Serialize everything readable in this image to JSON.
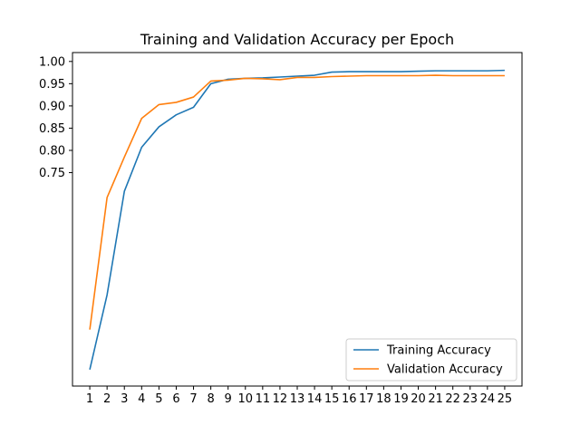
{
  "chart_data": {
    "type": "line",
    "title": "Training and Validation Accuracy per Epoch",
    "xlabel": "",
    "ylabel": "",
    "x": [
      1,
      2,
      3,
      4,
      5,
      6,
      7,
      8,
      9,
      10,
      11,
      12,
      13,
      14,
      15,
      16,
      17,
      18,
      19,
      20,
      21,
      22,
      23,
      24,
      25
    ],
    "xticks": [
      "1",
      "2",
      "3",
      "4",
      "5",
      "6",
      "7",
      "8",
      "9",
      "10",
      "11",
      "12",
      "13",
      "14",
      "15",
      "16",
      "17",
      "18",
      "19",
      "20",
      "21",
      "22",
      "23",
      "24",
      "25"
    ],
    "yticks": [
      "0.75",
      "0.80",
      "0.85",
      "0.90",
      "0.95",
      "1.00"
    ],
    "ytick_values": [
      0.75,
      0.8,
      0.85,
      0.9,
      0.95,
      1.0
    ],
    "ylim": [
      0.27,
      1.02
    ],
    "xlim": [
      0,
      26
    ],
    "grid": false,
    "legend_position": "lower-right",
    "series": [
      {
        "name": "Training Accuracy",
        "color": "#1f77b4",
        "values": [
          0.307,
          0.475,
          0.708,
          0.807,
          0.853,
          0.88,
          0.897,
          0.95,
          0.96,
          0.962,
          0.963,
          0.965,
          0.967,
          0.969,
          0.976,
          0.977,
          0.977,
          0.977,
          0.977,
          0.978,
          0.979,
          0.979,
          0.979,
          0.979,
          0.98
        ]
      },
      {
        "name": "Validation Accuracy",
        "color": "#ff7f0e",
        "values": [
          0.397,
          0.694,
          0.785,
          0.872,
          0.903,
          0.908,
          0.92,
          0.956,
          0.958,
          0.962,
          0.961,
          0.959,
          0.964,
          0.964,
          0.966,
          0.967,
          0.968,
          0.968,
          0.968,
          0.968,
          0.969,
          0.968,
          0.968,
          0.968,
          0.968
        ]
      }
    ]
  }
}
